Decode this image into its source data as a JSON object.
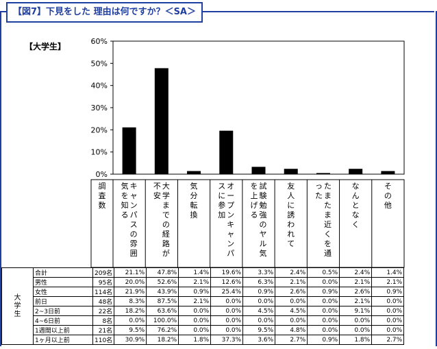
{
  "header": {
    "title": "【図7】下見をした 理由は何ですか？＜SA＞"
  },
  "group_label": "【大学生】",
  "count_header": "調査数",
  "chart_data": {
    "type": "bar",
    "categories": [
      "キャンパスの雰囲気を知る",
      "大学までの経路が不安",
      "気分転換",
      "オープンキャンパスに参加",
      "試験勉強のヤル気を上げる",
      "友人に誘われて",
      "たまたま近くを通った",
      "なんとなく",
      "その他"
    ],
    "values": [
      21.1,
      47.8,
      1.4,
      19.6,
      3.3,
      2.4,
      0.5,
      2.4,
      1.4
    ],
    "ylim": [
      0,
      60
    ],
    "yticks": [
      "0%",
      "10%",
      "20%",
      "30%",
      "40%",
      "50%",
      "60%"
    ],
    "bar_color": "#000000"
  },
  "table": {
    "side_label": "大学生",
    "rows": [
      {
        "label": "合計",
        "count": "209名",
        "values": [
          "21.1%",
          "47.8%",
          "1.4%",
          "19.6%",
          "3.3%",
          "2.4%",
          "0.5%",
          "2.4%",
          "1.4%"
        ]
      },
      {
        "label": "男性",
        "count": "95名",
        "values": [
          "20.0%",
          "52.6%",
          "2.1%",
          "12.6%",
          "6.3%",
          "2.1%",
          "0.0%",
          "2.1%",
          "2.1%"
        ]
      },
      {
        "label": "女性",
        "count": "114名",
        "values": [
          "21.9%",
          "43.9%",
          "0.9%",
          "25.4%",
          "0.9%",
          "2.6%",
          "0.9%",
          "2.6%",
          "0.9%"
        ]
      },
      {
        "label": "前日",
        "count": "48名",
        "values": [
          "8.3%",
          "87.5%",
          "2.1%",
          "0.0%",
          "0.0%",
          "0.0%",
          "0.0%",
          "2.1%",
          "0.0%"
        ]
      },
      {
        "label": "2~3日前",
        "count": "22名",
        "values": [
          "18.2%",
          "63.6%",
          "0.0%",
          "0.0%",
          "4.5%",
          "4.5%",
          "0.0%",
          "9.1%",
          "0.0%"
        ]
      },
      {
        "label": "4~6日前",
        "count": "8名",
        "values": [
          "0.0%",
          "100.0%",
          "0.0%",
          "0.0%",
          "0.0%",
          "0.0%",
          "0.0%",
          "0.0%",
          "0.0%"
        ]
      },
      {
        "label": "1週間以上前",
        "count": "21名",
        "values": [
          "9.5%",
          "76.2%",
          "0.0%",
          "0.0%",
          "9.5%",
          "4.8%",
          "0.0%",
          "0.0%",
          "0.0%"
        ]
      },
      {
        "label": "1ヶ月以上前",
        "count": "110名",
        "values": [
          "30.9%",
          "18.2%",
          "1.8%",
          "37.3%",
          "3.6%",
          "2.7%",
          "0.9%",
          "1.8%",
          "2.7%"
        ]
      }
    ]
  }
}
